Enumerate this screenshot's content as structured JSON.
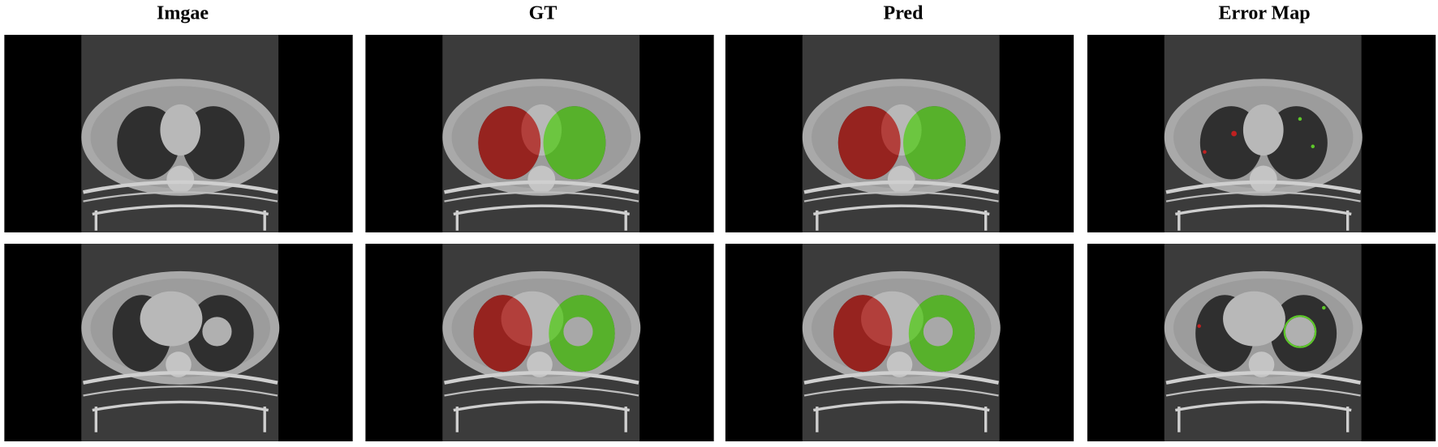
{
  "header": {
    "titles": [
      "Imgae",
      "GT",
      "Pred",
      "Error Map"
    ]
  }
}
